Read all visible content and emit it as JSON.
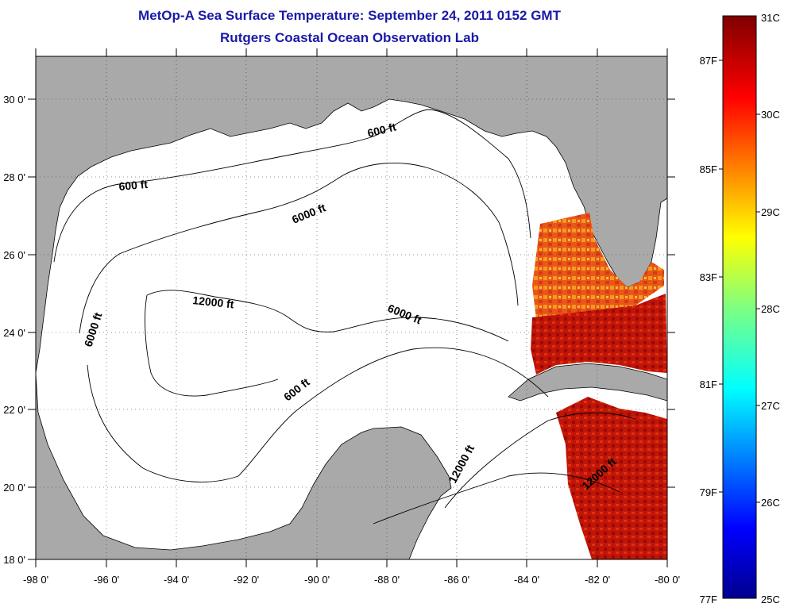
{
  "title": {
    "line1": "MetOp-A Sea Surface Temperature:  September 24, 2011 0152 GMT",
    "line2": "Rutgers Coastal Ocean Observation Lab"
  },
  "map": {
    "region": "Gulf of Mexico",
    "lon_range": [
      -98,
      -80
    ],
    "lat_range": [
      18,
      31
    ],
    "x_ticks": [
      "-98 0'",
      "-96 0'",
      "-94 0'",
      "-92 0'",
      "-90 0'",
      "-88 0'",
      "-86 0'",
      "-84 0'",
      "-82 0'",
      "-80 0'"
    ],
    "y_ticks": [
      "18 0'",
      "20 0'",
      "22 0'",
      "24 0'",
      "26 0'",
      "28 0'",
      "30 0'"
    ],
    "grid": "dotted",
    "land_color": "#a9a9a9",
    "water_color": "#ffffff",
    "contour_labels": [
      "600 ft",
      "6000 ft",
      "12000 ft",
      "6000 ft",
      "6000 ft",
      "600 ft",
      "600 ft",
      "12000 ft",
      "12000 ft"
    ]
  },
  "colorbar": {
    "celsius_labels": [
      "31C",
      "30C",
      "29C",
      "28C",
      "27C",
      "26C",
      "25C"
    ],
    "fahrenheit_labels": [
      "87F",
      "85F",
      "83F",
      "81F",
      "79F",
      "77F"
    ],
    "range_c": [
      25,
      31
    ],
    "colormap": "jet"
  }
}
